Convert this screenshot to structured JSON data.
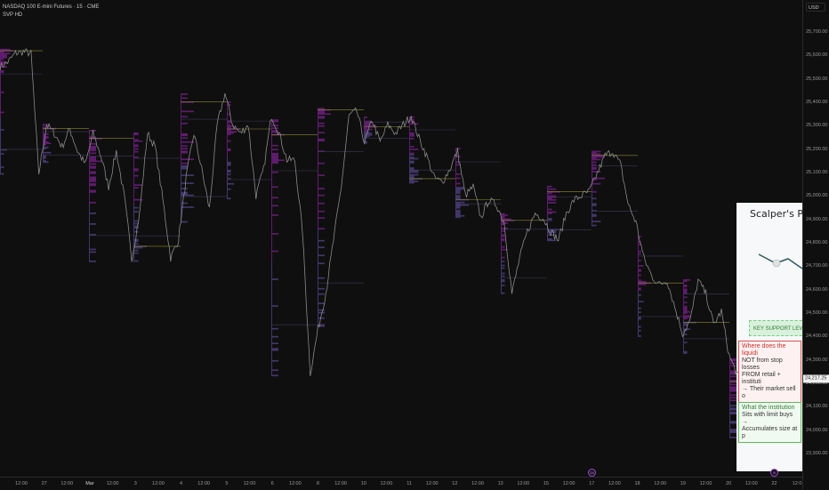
{
  "header": {
    "symbol_title": "NASDAQ 100 E-mini Futures · 15 · CME",
    "indicator": "SVP HD"
  },
  "price_axis": {
    "currency": "USD",
    "labels": [
      "25,700.00",
      "25,600.00",
      "25,500.00",
      "25,400.00",
      "25,300.00",
      "25,200.00",
      "25,100.00",
      "25,000.00",
      "24,900.00",
      "24,800.00",
      "24,700.00",
      "24,600.00",
      "24,500.00",
      "24,400.00",
      "24,300.00",
      "24,200.00",
      "24,100.00",
      "24,000.00",
      "23,900.00"
    ],
    "last_price": "24,217.25",
    "last_price_value": 24217.25
  },
  "time_axis": {
    "labels": [
      "12:00",
      "27",
      "12:00",
      "Mar",
      "12:00",
      "3",
      "12:00",
      "4",
      "12:00",
      "5",
      "12:00",
      "6",
      "12:00",
      "8",
      "12:00",
      "10",
      "12:00",
      "11",
      "12:00",
      "12",
      "12:00",
      "13",
      "12:00",
      "15",
      "12:00",
      "17",
      "12:00",
      "18",
      "12:00",
      "19",
      "12:00",
      "20",
      "12:00",
      "22",
      "12:0"
    ]
  },
  "event_markers": [
    {
      "label": "24"
    },
    {
      "label": "8"
    }
  ],
  "overlay": {
    "title": "Scalper's Para",
    "support": "KEY SUPPORT LEVEL",
    "red_box": {
      "heading": "Where does the liquidi",
      "lines": [
        "NOT from stop losses",
        "FROM retail + instituti",
        "→ Their market sell o"
      ]
    },
    "green_box": {
      "heading": "What the institution",
      "lines": [
        "Sits with limit buys →",
        "Accumulates size at p"
      ]
    }
  },
  "colors": {
    "background": "#0f0f0f",
    "price_line": "#8a8a8a",
    "profile_up": "#6a1f7a",
    "profile_down": "#4a3d78",
    "poc": "#8a8a30"
  },
  "price_path": [
    25552,
    25571,
    25609,
    25616,
    25609,
    25096,
    25305,
    25267,
    25210,
    25286,
    25191,
    25134,
    25267,
    25172,
    25039,
    25191,
    25001,
    24735,
    24925,
    25267,
    25210,
    24982,
    24735,
    24811,
    25077,
    25267,
    25115,
    24944,
    25305,
    25438,
    25305,
    25267,
    25305,
    25001,
    25115,
    25343,
    25267,
    25153,
    25153,
    24849,
    24242,
    24431,
    24583,
    24811,
    25039,
    25343,
    25362,
    25229,
    25324,
    25229,
    25305,
    25267,
    25305,
    25343,
    25248,
    25172,
    25077,
    25058,
    25115,
    25191,
    25001,
    25039,
    24906,
    24982,
    24963,
    24887,
    24583,
    24735,
    24849,
    24925,
    24906,
    24849,
    24811,
    24925,
    24982,
    25001,
    25020,
    25096,
    25172,
    25191,
    25134,
    24963,
    24887,
    24735,
    24659,
    24621,
    24640,
    24526,
    24412,
    24469,
    24640,
    24583,
    24450,
    24507,
    24318,
    24242,
    24166,
    24052,
    23976,
    24166,
    24217
  ]
}
